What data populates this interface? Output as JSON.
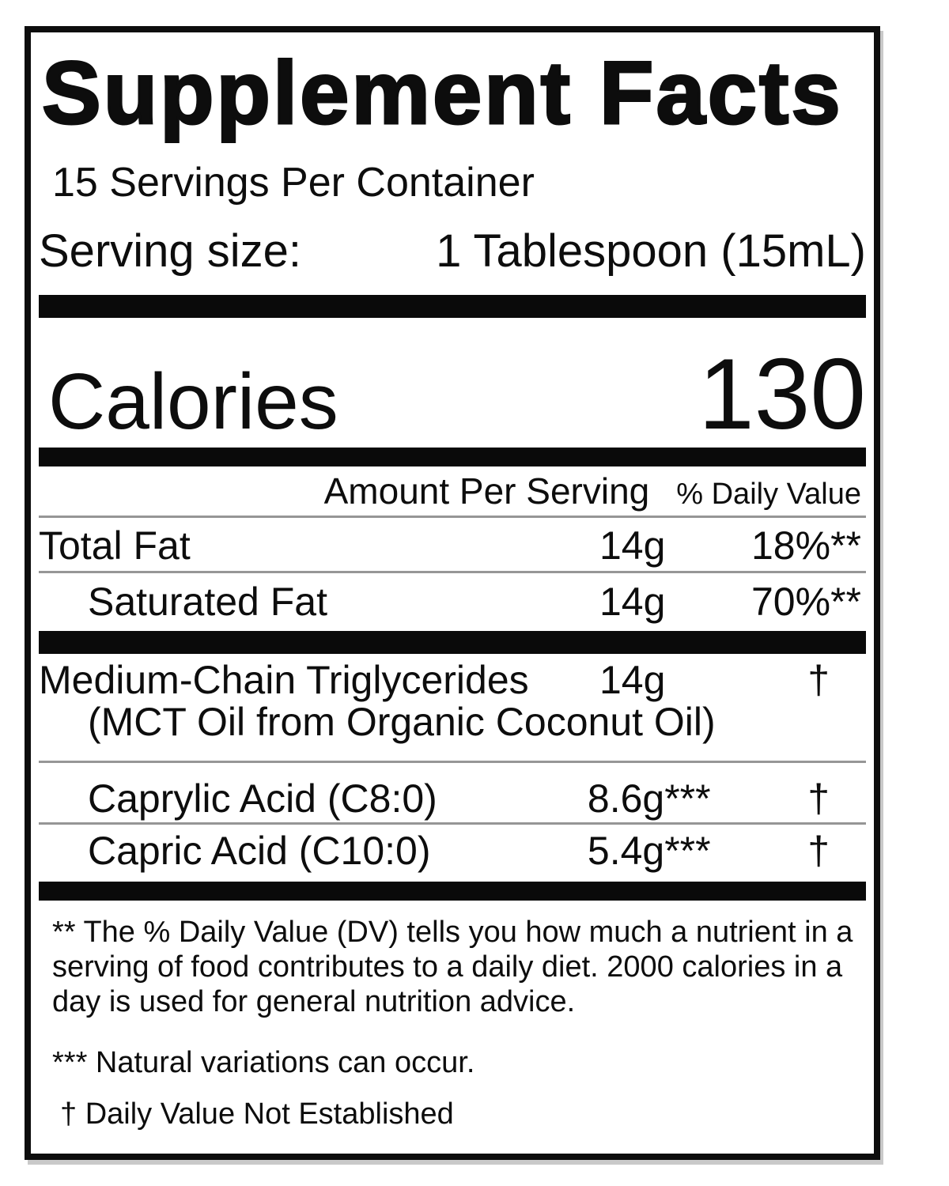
{
  "label": {
    "title": "Supplement Facts",
    "servings_per_container": "15 Servings Per Container",
    "serving_size": {
      "label": "Serving size:",
      "value": "1 Tablespoon (15mL)"
    },
    "calories": {
      "label": "Calories",
      "value": "130"
    },
    "columns": {
      "amount": "Amount Per Serving",
      "daily_value": "% Daily Value"
    },
    "rows": [
      {
        "name": "Total Fat",
        "amount": "14g",
        "daily_value": "18%**"
      },
      {
        "name": "Saturated Fat",
        "amount": "14g",
        "daily_value": "70%**"
      },
      {
        "name": "Medium-Chain Triglycerides",
        "subname": "(MCT Oil from Organic Coconut Oil)",
        "amount": "14g",
        "daily_value": "†"
      },
      {
        "name": "Caprylic Acid (C8:0)",
        "amount": "8.6g***",
        "daily_value": "†"
      },
      {
        "name": "Capric Acid (C10:0)",
        "amount": "5.4g***",
        "daily_value": "†"
      }
    ],
    "footnotes": {
      "daily_value_note_lines": [
        "** The % Daily Value (DV) tells you how much a nutrient in a",
        "serving of food contributes to a daily diet. 2000 calories in a",
        "day is used for general nutrition advice."
      ],
      "variation_note": "*** Natural variations can occur.",
      "not_established_note": "† Daily Value Not Established"
    },
    "colors": {
      "ink": "#0d0d0d",
      "rule_gray": "#969696",
      "background": "#ffffff"
    }
  }
}
